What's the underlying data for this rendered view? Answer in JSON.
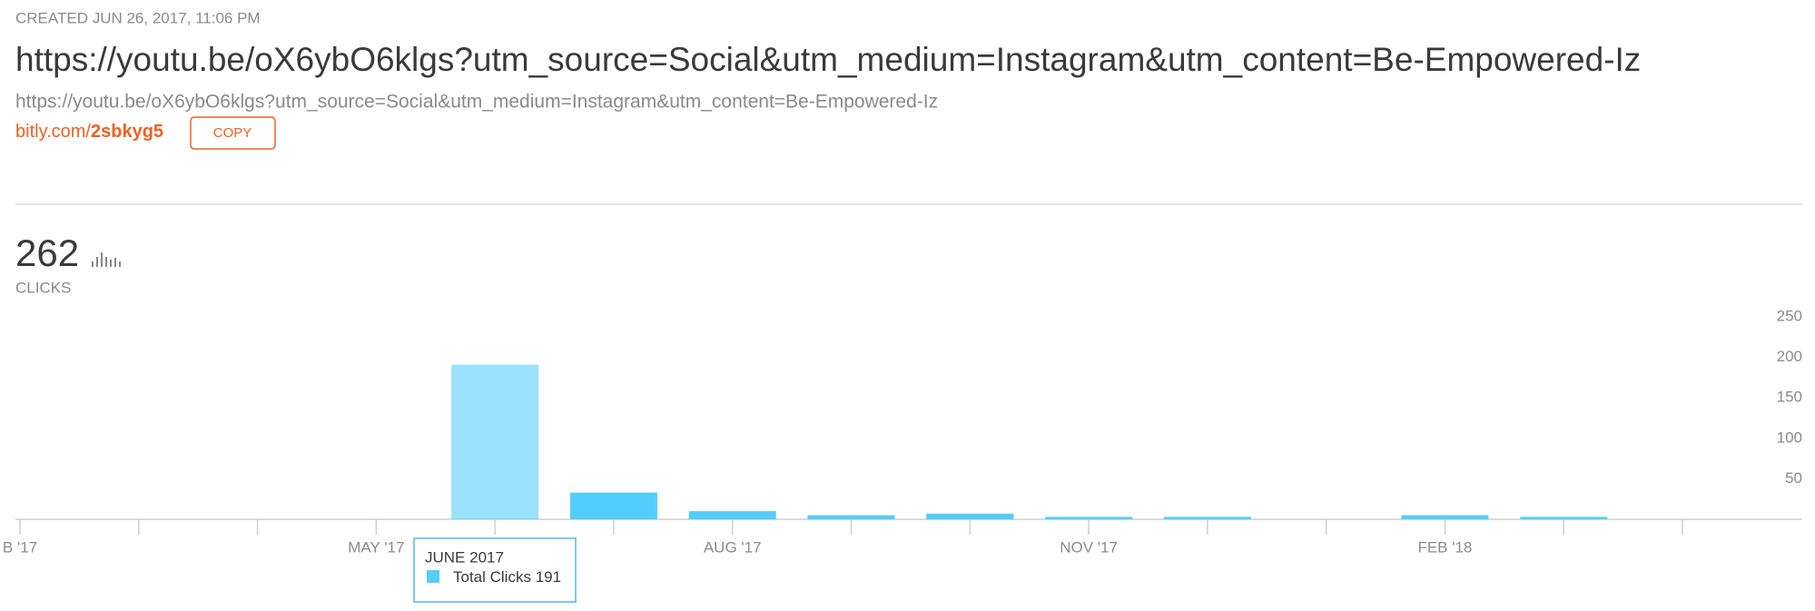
{
  "header": {
    "created": "CREATED JUN 26, 2017, 11:06 PM",
    "title": "https://youtu.be/oX6ybO6klgs?utm_source=Social&utm_medium=Instagram&utm_content=Be-Empowered-Iz",
    "long_url": "https://youtu.be/oX6ybO6klgs?utm_source=Social&utm_medium=Instagram&utm_content=Be-Empowered-Iz",
    "short_domain": "bitly.com/",
    "short_code": "2sbkyg5",
    "copy_button": "COPY"
  },
  "stats": {
    "total": "262",
    "label": "CLICKS"
  },
  "chart_data": {
    "type": "bar",
    "categories": [
      "B '17",
      null,
      null,
      "MAY '17",
      null,
      null,
      "AUG '17",
      null,
      null,
      "NOV '17",
      null,
      null,
      "FEB '18",
      null,
      null
    ],
    "series": [
      {
        "name": "Total Clicks",
        "color": "#55cdfa",
        "values": [
          0,
          0,
          0,
          0,
          191,
          33,
          10,
          5,
          7,
          3,
          3,
          0,
          5,
          3,
          0
        ]
      }
    ],
    "ylim": [
      0,
      250
    ],
    "yticks": [
      50,
      100,
      150,
      200,
      250
    ],
    "grid": false,
    "tooltip": {
      "title": "JUNE 2017"
    }
  }
}
